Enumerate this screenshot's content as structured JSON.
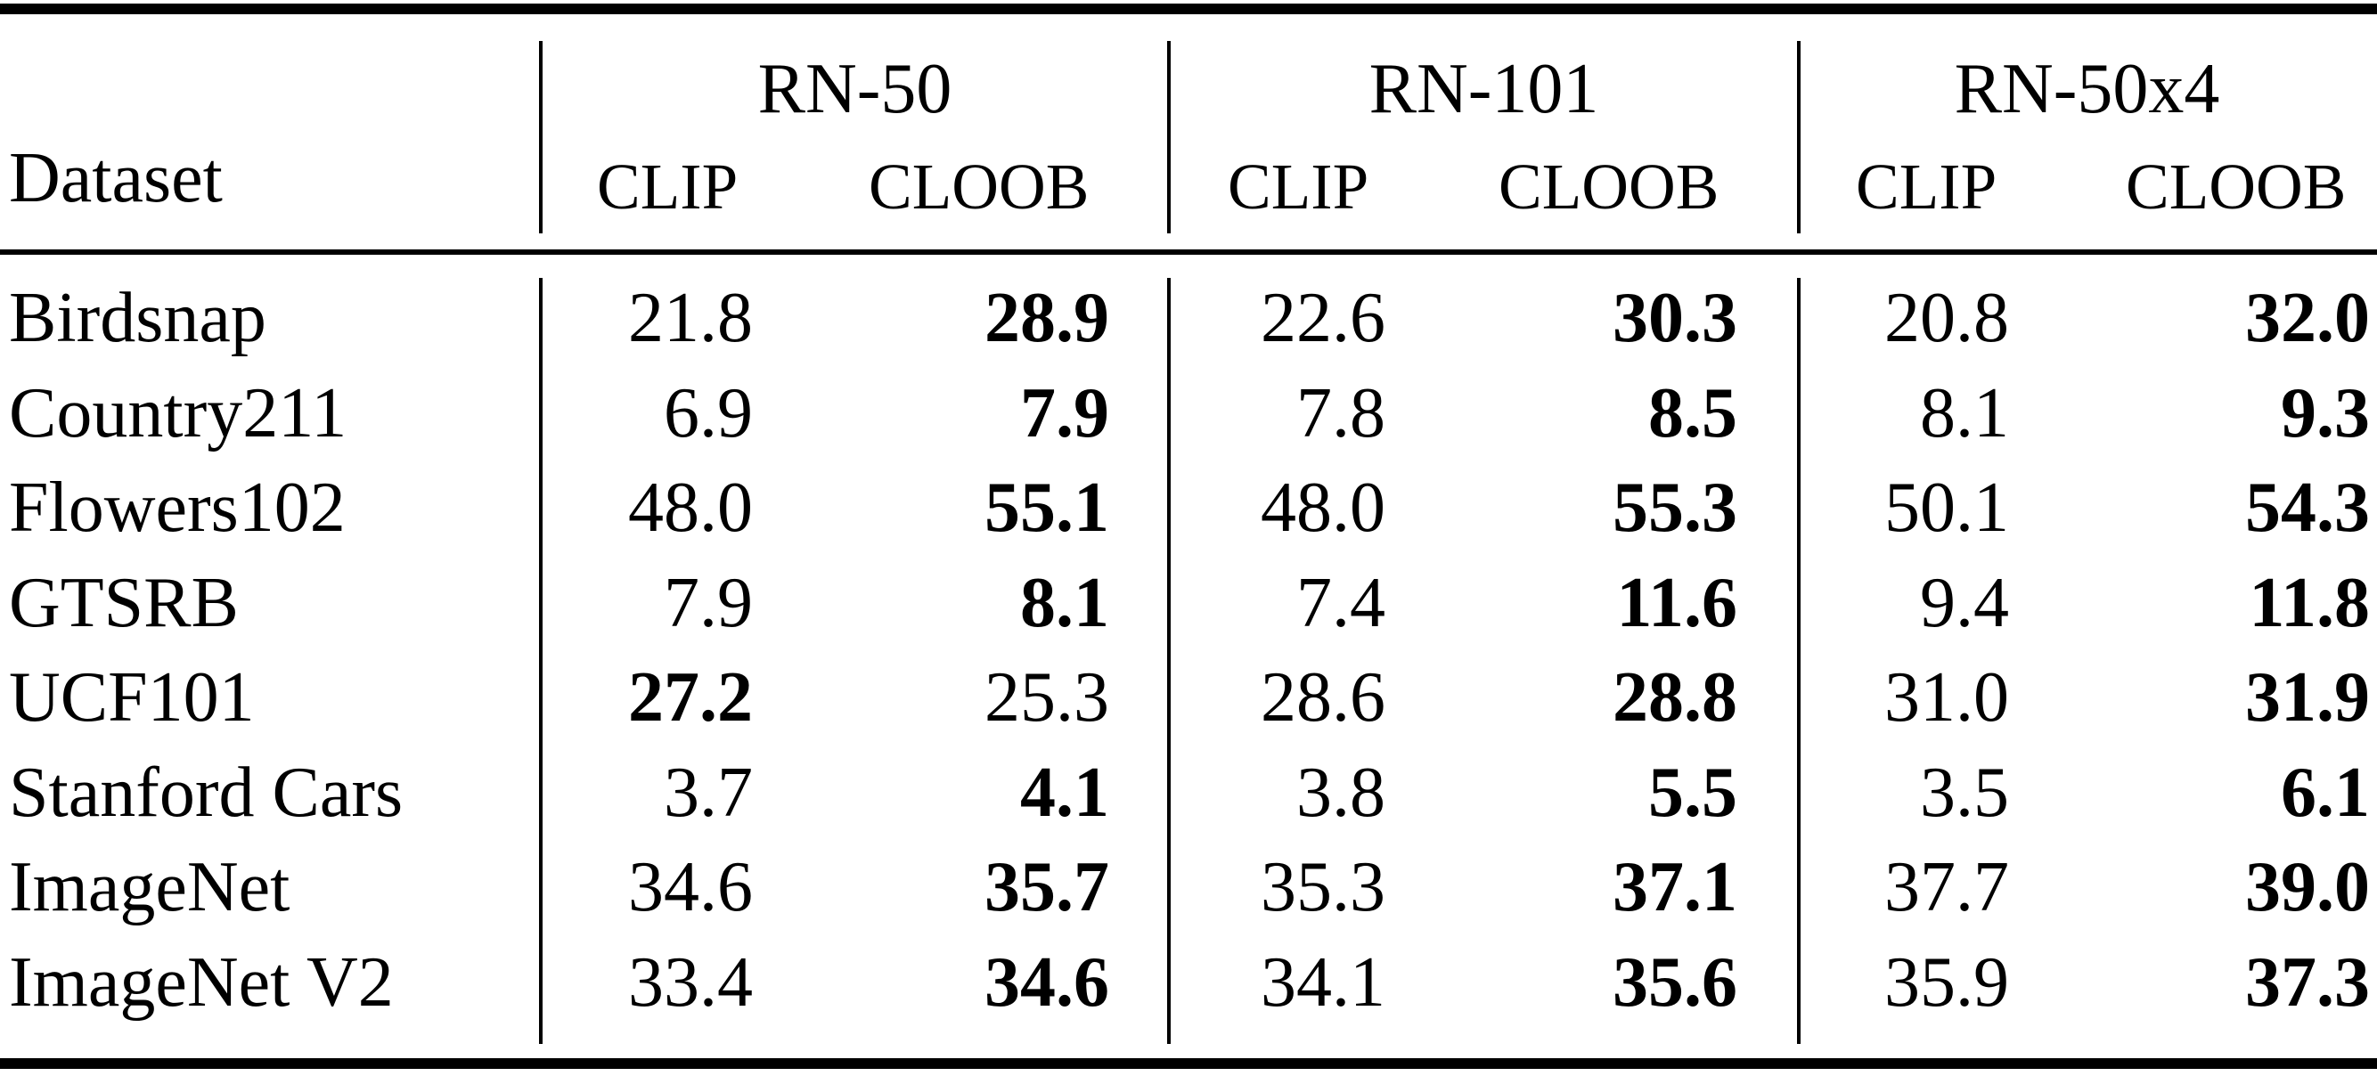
{
  "table": {
    "dataset_header": "Dataset",
    "groups": [
      {
        "name": "RN-50",
        "sub": [
          "CLIP",
          "CLOOB"
        ]
      },
      {
        "name": "RN-101",
        "sub": [
          "CLIP",
          "CLOOB"
        ]
      },
      {
        "name": "RN-50x4",
        "sub": [
          "CLIP",
          "CLOOB"
        ]
      }
    ],
    "rows": [
      {
        "dataset": "Birdsnap",
        "values": [
          "21.8",
          "28.9",
          "22.6",
          "30.3",
          "20.8",
          "32.0"
        ],
        "bold": [
          false,
          true,
          false,
          true,
          false,
          true
        ]
      },
      {
        "dataset": "Country211",
        "values": [
          "6.9",
          "7.9",
          "7.8",
          "8.5",
          "8.1",
          "9.3"
        ],
        "bold": [
          false,
          true,
          false,
          true,
          false,
          true
        ]
      },
      {
        "dataset": "Flowers102",
        "values": [
          "48.0",
          "55.1",
          "48.0",
          "55.3",
          "50.1",
          "54.3"
        ],
        "bold": [
          false,
          true,
          false,
          true,
          false,
          true
        ]
      },
      {
        "dataset": "GTSRB",
        "values": [
          "7.9",
          "8.1",
          "7.4",
          "11.6",
          "9.4",
          "11.8"
        ],
        "bold": [
          false,
          true,
          false,
          true,
          false,
          true
        ]
      },
      {
        "dataset": "UCF101",
        "values": [
          "27.2",
          "25.3",
          "28.6",
          "28.8",
          "31.0",
          "31.9"
        ],
        "bold": [
          true,
          false,
          false,
          true,
          false,
          true
        ]
      },
      {
        "dataset": "Stanford Cars",
        "values": [
          "3.7",
          "4.1",
          "3.8",
          "5.5",
          "3.5",
          "6.1"
        ],
        "bold": [
          false,
          true,
          false,
          true,
          false,
          true
        ]
      },
      {
        "dataset": "ImageNet",
        "values": [
          "34.6",
          "35.7",
          "35.3",
          "37.1",
          "37.7",
          "39.0"
        ],
        "bold": [
          false,
          true,
          false,
          true,
          false,
          true
        ]
      },
      {
        "dataset": "ImageNet V2",
        "values": [
          "33.4",
          "34.6",
          "34.1",
          "35.6",
          "35.9",
          "37.3"
        ],
        "bold": [
          false,
          true,
          false,
          true,
          false,
          true
        ]
      }
    ]
  }
}
